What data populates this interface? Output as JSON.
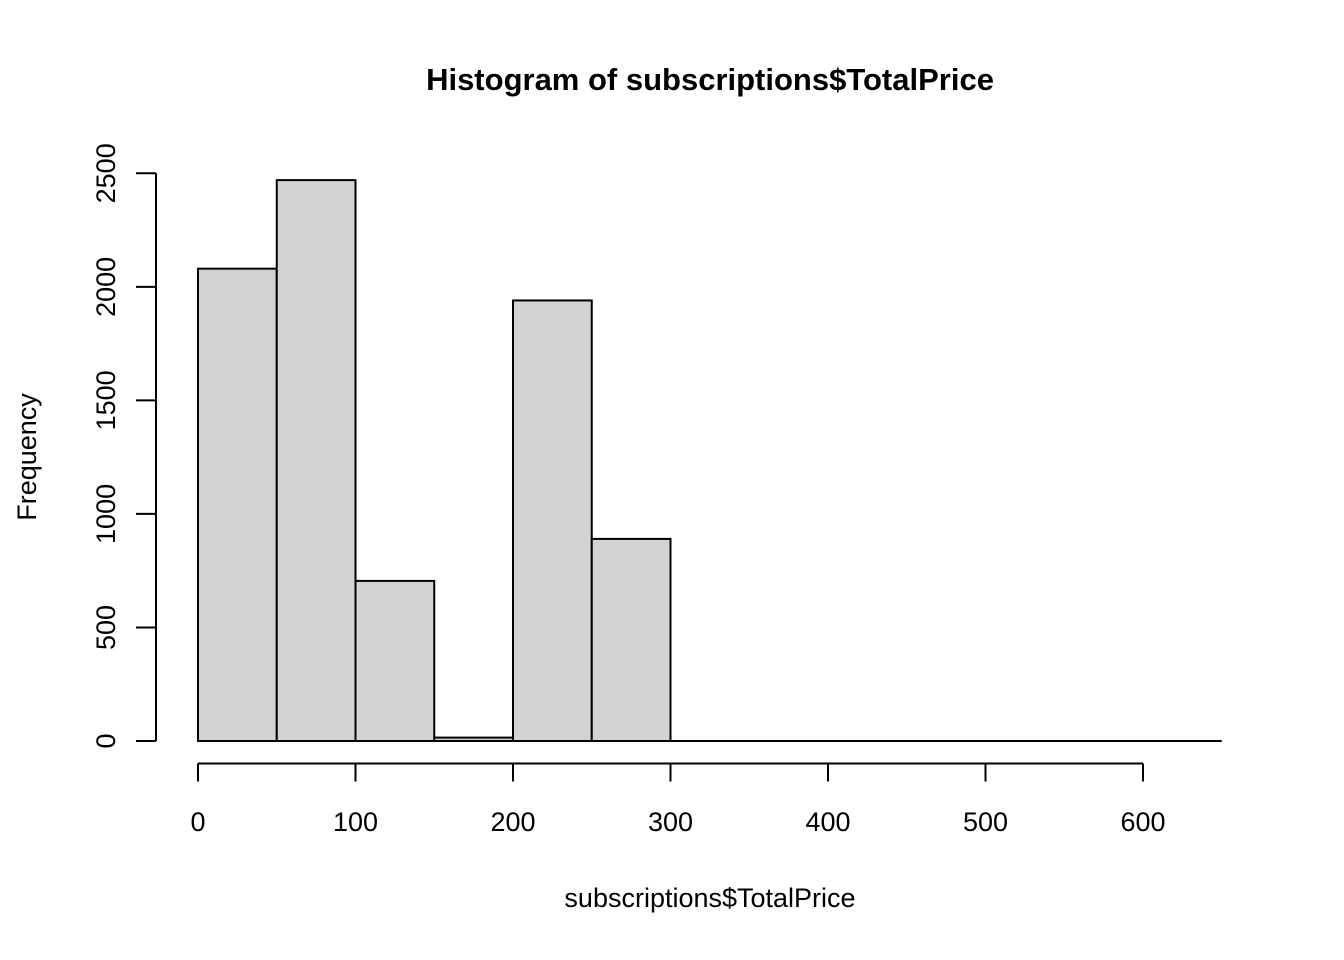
{
  "chart_data": {
    "type": "bar",
    "chart_kind": "histogram",
    "title": "Histogram of subscriptions$TotalPrice",
    "xlabel": "subscriptions$TotalPrice",
    "ylabel": "Frequency",
    "bin_width": 50,
    "breaks": [
      0,
      50,
      100,
      150,
      200,
      250,
      300,
      350,
      400,
      450,
      500,
      550,
      600,
      650
    ],
    "counts": [
      2080,
      2470,
      705,
      15,
      1940,
      890,
      0,
      0,
      0,
      0,
      0,
      0,
      0
    ],
    "x_ticks": [
      0,
      100,
      200,
      300,
      400,
      500,
      600
    ],
    "y_ticks": [
      0,
      500,
      1000,
      1500,
      2000,
      2500
    ],
    "xlim": [
      0,
      650
    ],
    "ylim": [
      0,
      2500
    ],
    "grid": false,
    "legend": false,
    "bar_fill": "#d3d3d3",
    "bar_stroke": "#000000",
    "axis_color": "#000000",
    "background": "#ffffff"
  }
}
